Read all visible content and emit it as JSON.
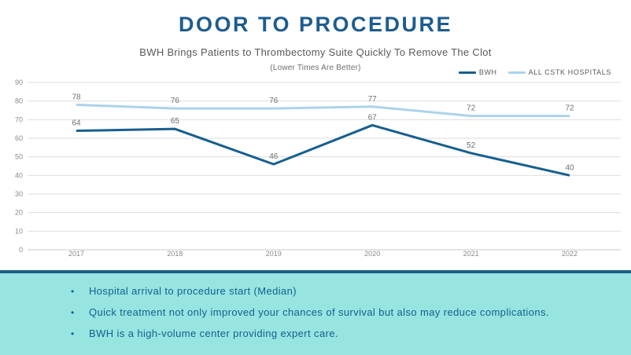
{
  "header": {
    "title": "DOOR TO PROCEDURE",
    "subtitle": "BWH Brings Patients to Thrombectomy Suite Quickly To Remove The Clot",
    "note": "(Lower Times Are Better)"
  },
  "chart_data": {
    "type": "line",
    "title": "DOOR TO PROCEDURE",
    "subtitle": "BWH Brings Patients to Thrombectomy Suite Quickly To Remove The Clot",
    "annotation": "(Lower Times Are Better)",
    "categories": [
      "2017",
      "2018",
      "2019",
      "2020",
      "2021",
      "2022"
    ],
    "series": [
      {
        "name": "BWH",
        "color": "#175f8f",
        "values": [
          64,
          65,
          46,
          67,
          52,
          40
        ]
      },
      {
        "name": "ALL CSTK HOSPITALS",
        "color": "#abd3ec",
        "values": [
          78,
          76,
          76,
          77,
          72,
          72
        ]
      }
    ],
    "xlabel": "",
    "ylabel": "",
    "ylim": [
      0,
      90
    ],
    "ytick_step": 10,
    "yticks": [
      0,
      10,
      20,
      30,
      40,
      50,
      60,
      70,
      80,
      90
    ],
    "grid": true,
    "point_labels_shown": true,
    "legend_position": "top-right"
  },
  "footer": {
    "bullets": [
      "Hospital arrival to procedure start (Median)",
      "Quick treatment not only improved your chances of survival but also may reduce complications.",
      "BWH is a high-volume center providing expert care."
    ]
  },
  "colors": {
    "title_blue": "#1e5c8e",
    "bwh_line": "#175f8f",
    "cstk_line": "#abd3ec",
    "teal_background": "#98e4e1",
    "footer_border_navy": "#1b5e88",
    "bullet_text_blue": "#11618e",
    "gridline": "#dedede",
    "baseline": "#c8c8c8",
    "axis_text": "#8a8a8d",
    "data_label_text": "#6f7072",
    "subtitle_gray": "#58595b"
  }
}
